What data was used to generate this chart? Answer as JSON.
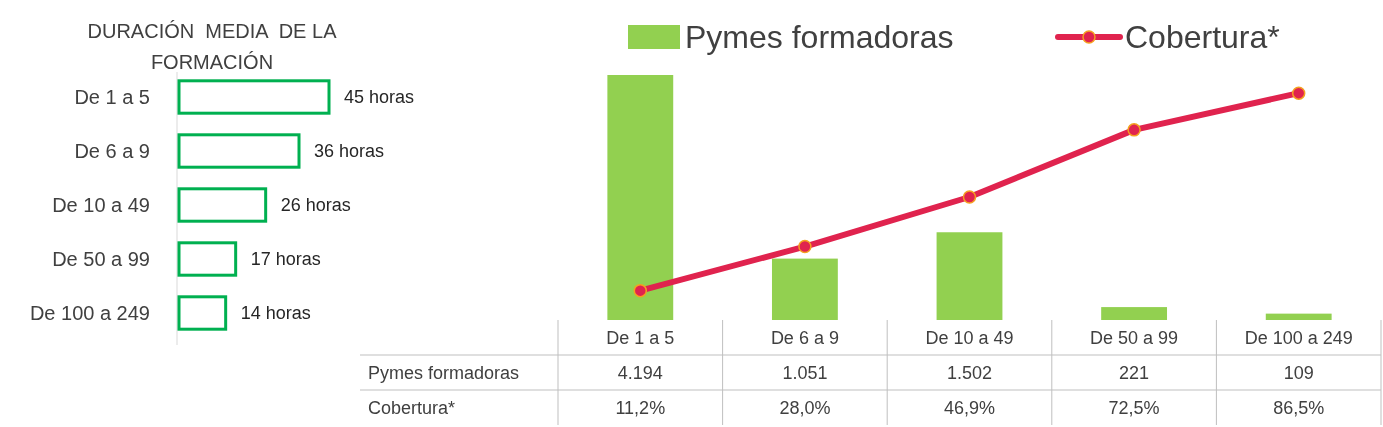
{
  "chart_data": [
    {
      "type": "bar",
      "orientation": "horizontal",
      "title": "DURACIÓN  MEDIA  DE LA FORMACIÓN",
      "categories": [
        "De 1 a 5",
        "De 6 a 9",
        "De 10 a 49",
        "De 50 a 99",
        "De 100 a 249"
      ],
      "values": [
        45,
        36,
        26,
        17,
        14
      ],
      "value_labels": [
        "45 horas",
        "36 horas",
        "26 horas",
        "17 horas",
        "14 horas"
      ],
      "color": "#00b050"
    },
    {
      "type": "bar",
      "categories": [
        "De 1 a 5",
        "De 6 a 9",
        "De 10 a 49",
        "De 50 a 99",
        "De 100 a 249"
      ],
      "legend": "top",
      "marker": "circle",
      "data_labels": true,
      "series": [
        {
          "name": "Pymes formadoras",
          "type": "bar",
          "color": "#92d050",
          "values": [
            4194,
            1051,
            1502,
            221,
            109
          ],
          "value_labels": [
            "4.194",
            "1.051",
            "1.502",
            "221",
            "109"
          ]
        },
        {
          "name": "Cobertura*",
          "type": "line",
          "axis": "y2",
          "color": "#e0234e",
          "values": [
            11.2,
            28.0,
            46.9,
            72.5,
            86.5
          ],
          "value_labels": [
            "11,2%",
            "28,0%",
            "46,9%",
            "72,5%",
            "86,5%"
          ]
        }
      ]
    }
  ]
}
